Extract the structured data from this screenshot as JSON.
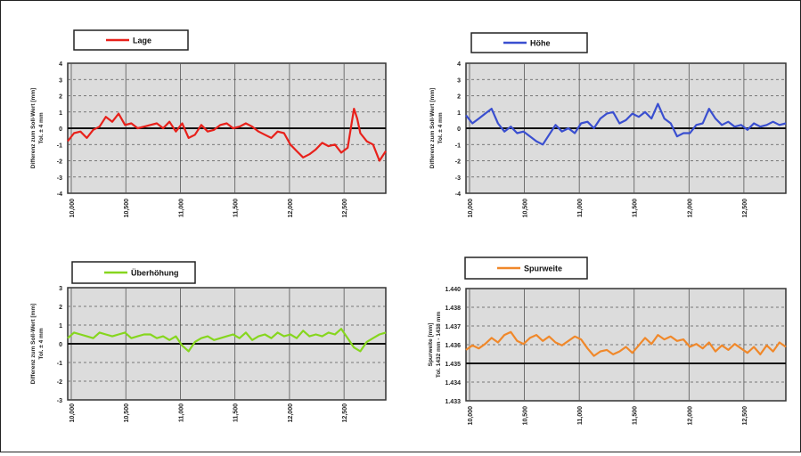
{
  "chart_data": [
    {
      "type": "line",
      "legend": "Lage",
      "color": "#e8211b",
      "ylabel": "Differenz zum Soll-Wert [mm]",
      "ylabel2": "Tol. ± 4 mm",
      "yticks": [
        "4",
        "3",
        "2",
        "1",
        "0",
        "-1",
        "-2",
        "-3",
        "-4"
      ],
      "ylim": [
        -4,
        4
      ],
      "xticks": [
        "10,000",
        "10,500",
        "11,000",
        "11,500",
        "12,000",
        "12,500"
      ],
      "xlim": [
        0,
        100
      ],
      "grid": true,
      "series": [
        {
          "x": [
            0,
            2,
            4,
            6,
            8,
            10,
            12,
            14,
            16,
            18,
            20,
            22,
            24,
            26,
            28,
            30,
            32,
            34,
            36,
            38,
            40,
            42,
            44,
            46,
            48,
            50,
            52,
            54,
            56,
            58,
            60,
            62,
            64,
            66,
            68,
            70,
            72,
            74,
            76,
            78,
            80,
            82,
            84,
            86,
            88,
            90,
            91,
            92,
            94,
            96,
            98,
            100
          ],
          "values": [
            -0.8,
            -0.3,
            -0.2,
            -0.6,
            -0.1,
            0.1,
            0.7,
            0.4,
            0.9,
            0.2,
            0.3,
            0,
            0.1,
            0.2,
            0.3,
            0,
            0.4,
            -0.2,
            0.3,
            -0.6,
            -0.4,
            0.2,
            -0.2,
            -0.1,
            0.2,
            0.3,
            0,
            0.1,
            0.3,
            0.1,
            -0.2,
            -0.4,
            -0.6,
            -0.2,
            -0.3,
            -1.0,
            -1.4,
            -1.8,
            -1.6,
            -1.3,
            -0.9,
            -1.1,
            -1.0,
            -1.5,
            -1.2,
            1.2,
            0.6,
            -0.3,
            -0.8,
            -1.0,
            -2.0,
            -1.4
          ]
        }
      ]
    },
    {
      "type": "line",
      "legend": "Höhe",
      "color": "#3a4fd0",
      "ylabel": "Differenz zum Soll-Wert [mm]",
      "ylabel2": "Tol. ± 4 mm",
      "yticks": [
        "4",
        "3",
        "2",
        "1",
        "0",
        "-1",
        "-2",
        "-3",
        "-4"
      ],
      "ylim": [
        -4,
        4
      ],
      "xticks": [
        "10,000",
        "10,500",
        "11,000",
        "11,500",
        "12,000",
        "12,500"
      ],
      "xlim": [
        0,
        100
      ],
      "grid": true,
      "series": [
        {
          "x": [
            0,
            2,
            4,
            6,
            8,
            10,
            12,
            14,
            16,
            18,
            20,
            22,
            24,
            26,
            28,
            30,
            32,
            34,
            36,
            38,
            40,
            42,
            44,
            46,
            48,
            50,
            52,
            54,
            56,
            58,
            60,
            62,
            64,
            66,
            68,
            70,
            72,
            74,
            76,
            78,
            80,
            82,
            84,
            86,
            88,
            90,
            92,
            94,
            96,
            98,
            100
          ],
          "values": [
            0.8,
            0.3,
            0.6,
            0.9,
            1.2,
            0.3,
            -0.2,
            0.1,
            -0.3,
            -0.2,
            -0.5,
            -0.8,
            -1.0,
            -0.4,
            0.2,
            -0.2,
            0,
            -0.3,
            0.3,
            0.4,
            0,
            0.6,
            0.9,
            1.0,
            0.3,
            0.5,
            0.9,
            0.7,
            1.0,
            0.6,
            1.5,
            0.6,
            0.3,
            -0.5,
            -0.3,
            -0.3,
            0.2,
            0.3,
            1.2,
            0.6,
            0.2,
            0.4,
            0.1,
            0.2,
            -0.1,
            0.3,
            0.1,
            0.2,
            0.4,
            0.2,
            0.3
          ]
        }
      ]
    },
    {
      "type": "line",
      "legend": "Überhöhung",
      "color": "#86d61e",
      "ylabel": "Differenz zum Soll-Wert [mm]",
      "ylabel2": "Tol. ± 4 mm",
      "yticks": [
        "3",
        "2",
        "1",
        "0",
        "-1",
        "-2",
        "-3"
      ],
      "ylim": [
        -3,
        3
      ],
      "xticks": [
        "10,000",
        "10,500",
        "11,000",
        "11,500",
        "12,000",
        "12,500"
      ],
      "xlim": [
        0,
        100
      ],
      "grid": true,
      "series": [
        {
          "x": [
            0,
            2,
            4,
            6,
            8,
            10,
            12,
            14,
            16,
            18,
            20,
            22,
            24,
            26,
            28,
            30,
            32,
            34,
            36,
            38,
            40,
            42,
            44,
            46,
            48,
            50,
            52,
            54,
            56,
            58,
            60,
            62,
            64,
            66,
            68,
            70,
            72,
            74,
            76,
            78,
            80,
            82,
            84,
            86,
            88,
            90,
            92,
            94,
            96,
            98,
            100
          ],
          "values": [
            0.3,
            0.6,
            0.5,
            0.4,
            0.3,
            0.6,
            0.5,
            0.4,
            0.5,
            0.6,
            0.3,
            0.4,
            0.5,
            0.5,
            0.3,
            0.4,
            0.2,
            0.4,
            -0.1,
            -0.4,
            0.1,
            0.3,
            0.4,
            0.2,
            0.3,
            0.4,
            0.5,
            0.3,
            0.6,
            0.2,
            0.4,
            0.5,
            0.3,
            0.6,
            0.4,
            0.5,
            0.3,
            0.7,
            0.4,
            0.5,
            0.4,
            0.6,
            0.5,
            0.8,
            0.3,
            -0.2,
            -0.4,
            0.1,
            0.3,
            0.5,
            0.6
          ]
        }
      ]
    },
    {
      "type": "line",
      "legend": "Spurweite",
      "color": "#f0882a",
      "ylabel": "Spurweite [mm]",
      "ylabel2": "Tol. 1432 mm - 1438 mm",
      "yticks": [
        "1.440",
        "1.438",
        "1.437",
        "1.436",
        "1.435",
        "1.434",
        "1.433"
      ],
      "ylim": [
        1432.5,
        1440
      ],
      "xticks": [
        "10,000",
        "10,500",
        "11,000",
        "11,500",
        "12,000",
        "12,500"
      ],
      "xlim": [
        0,
        100
      ],
      "grid": true,
      "series": [
        {
          "x": [
            0,
            2,
            4,
            6,
            8,
            10,
            12,
            14,
            16,
            18,
            20,
            22,
            24,
            26,
            28,
            30,
            32,
            34,
            36,
            38,
            40,
            42,
            44,
            46,
            48,
            50,
            52,
            54,
            56,
            58,
            60,
            62,
            64,
            66,
            68,
            70,
            72,
            74,
            76,
            78,
            80,
            82,
            84,
            86,
            88,
            90,
            92,
            94,
            96,
            98,
            100
          ],
          "values": [
            1435.9,
            1436.2,
            1436.0,
            1436.3,
            1436.7,
            1436.4,
            1436.9,
            1437.1,
            1436.5,
            1436.3,
            1436.7,
            1436.9,
            1436.5,
            1436.8,
            1436.4,
            1436.2,
            1436.5,
            1436.8,
            1436.6,
            1436.0,
            1435.5,
            1435.8,
            1435.9,
            1435.6,
            1435.8,
            1436.1,
            1435.7,
            1436.2,
            1436.7,
            1436.3,
            1436.9,
            1436.6,
            1436.8,
            1436.5,
            1436.6,
            1436.1,
            1436.3,
            1436.0,
            1436.4,
            1435.8,
            1436.2,
            1435.9,
            1436.3,
            1436.0,
            1435.7,
            1436.1,
            1435.6,
            1436.2,
            1435.8,
            1436.4,
            1436.1
          ]
        }
      ]
    }
  ]
}
